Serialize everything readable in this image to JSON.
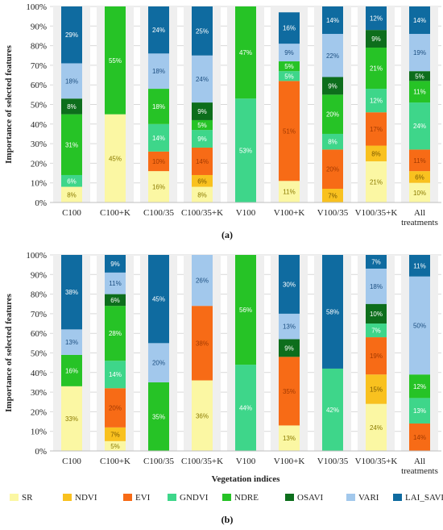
{
  "colors": {
    "SR": "#fbf7a3",
    "NDVI": "#f9c11f",
    "EVI": "#f76b16",
    "GNDVI": "#3ed68a",
    "NDRE": "#26c326",
    "OSAVI": "#0d6e1c",
    "VARI": "#a2c8ec",
    "LAI_SAVI": "#0f6ba0"
  },
  "legend": {
    "items": [
      "SR",
      "NDVI",
      "EVI",
      "GNDVI",
      "NDRE",
      "OSAVI",
      "VARI",
      "LAI_SAVI"
    ]
  },
  "chart_data": [
    {
      "type": "bar",
      "stacked": true,
      "panel_label": "(a)",
      "ylabel": "Importance of selected features",
      "xlabel": "",
      "ylim": [
        0,
        100
      ],
      "yticks": [
        "0%",
        "10%",
        "20%",
        "30%",
        "40%",
        "50%",
        "60%",
        "70%",
        "80%",
        "90%",
        "100%"
      ],
      "categories": [
        "C100",
        "C100+K",
        "C100/35",
        "C100/35+K",
        "V100",
        "V100+K",
        "V100/35",
        "V100/35+K",
        "All treatments"
      ],
      "series": [
        {
          "name": "SR",
          "values": [
            8,
            45,
            16,
            8,
            0,
            11,
            0,
            21,
            10
          ],
          "labels": [
            "8%",
            "45%",
            "16%",
            "8%",
            "",
            "11%",
            "",
            "21%",
            "10%"
          ]
        },
        {
          "name": "NDVI",
          "values": [
            0,
            0,
            0,
            6,
            0,
            0,
            7,
            8,
            6
          ],
          "labels": [
            "",
            "",
            "",
            "6%",
            "",
            "",
            "7%",
            "8%",
            "6%"
          ]
        },
        {
          "name": "EVI",
          "values": [
            0,
            0,
            10,
            14,
            0,
            51,
            20,
            17,
            11
          ],
          "labels": [
            "",
            "",
            "10%",
            "14%",
            "",
            "51%",
            "20%",
            "17%",
            "11%"
          ]
        },
        {
          "name": "GNDVI",
          "values": [
            6,
            0,
            14,
            9,
            53,
            5,
            8,
            12,
            24
          ],
          "labels": [
            "6%",
            "",
            "14%",
            "9%",
            "53%",
            "5%",
            "8%",
            "12%",
            "24%"
          ]
        },
        {
          "name": "NDRE",
          "values": [
            31,
            55,
            18,
            5,
            47,
            5,
            20,
            21,
            11
          ],
          "labels": [
            "31%",
            "55%",
            "18%",
            "5%",
            "47%",
            "5%",
            "20%",
            "21%",
            "11%"
          ]
        },
        {
          "name": "OSAVI",
          "values": [
            8,
            0,
            0,
            9,
            0,
            0,
            9,
            9,
            5
          ],
          "labels": [
            "8%",
            "",
            "",
            "9%",
            "",
            "",
            "9%",
            "9%",
            "5%"
          ]
        },
        {
          "name": "VARI",
          "values": [
            18,
            0,
            18,
            24,
            0,
            9,
            22,
            0,
            19
          ],
          "labels": [
            "18%",
            "",
            "18%",
            "24%",
            "",
            "9%",
            "22%",
            "",
            "19%"
          ]
        },
        {
          "name": "LAI_SAVI",
          "values": [
            29,
            0,
            24,
            25,
            0,
            16,
            14,
            12,
            14
          ],
          "labels": [
            "29%",
            "",
            "24%",
            "25%",
            "",
            "16%",
            "14%",
            "12%",
            "14%"
          ]
        }
      ]
    },
    {
      "type": "bar",
      "stacked": true,
      "panel_label": "(b)",
      "ylabel": "Importance of selected features",
      "xlabel": "Vegetation indices",
      "ylim": [
        0,
        100
      ],
      "yticks": [
        "0%",
        "10%",
        "20%",
        "30%",
        "40%",
        "50%",
        "60%",
        "70%",
        "80%",
        "90%",
        "100%"
      ],
      "categories": [
        "C100",
        "C100+K",
        "C100/35",
        "C100/35+K",
        "V100",
        "V100+K",
        "V100/35",
        "V100/35+K",
        "All treatments"
      ],
      "series": [
        {
          "name": "SR",
          "values": [
            33,
            5,
            0,
            36,
            0,
            13,
            0,
            24,
            0
          ],
          "labels": [
            "33%",
            "5%",
            "",
            "36%",
            "",
            "13%",
            "",
            "24%",
            ""
          ]
        },
        {
          "name": "NDVI",
          "values": [
            0,
            7,
            0,
            0,
            0,
            0,
            0,
            15,
            0
          ],
          "labels": [
            "",
            "7%",
            "",
            "",
            "",
            "",
            "",
            "15%",
            ""
          ]
        },
        {
          "name": "EVI",
          "values": [
            0,
            20,
            0,
            38,
            0,
            35,
            0,
            19,
            14
          ],
          "labels": [
            "",
            "20%",
            "",
            "38%",
            "",
            "35%",
            "",
            "19%",
            "14%"
          ]
        },
        {
          "name": "GNDVI",
          "values": [
            0,
            14,
            0,
            0,
            44,
            0,
            42,
            7,
            13
          ],
          "labels": [
            "",
            "14%",
            "",
            "",
            "44%",
            "",
            "42%",
            "7%",
            "13%"
          ]
        },
        {
          "name": "NDRE",
          "values": [
            16,
            28,
            35,
            0,
            56,
            0,
            0,
            0,
            12
          ],
          "labels": [
            "16%",
            "28%",
            "35%",
            "",
            "56%",
            "",
            "",
            "",
            "12%"
          ]
        },
        {
          "name": "OSAVI",
          "values": [
            0,
            6,
            0,
            0,
            0,
            9,
            0,
            10,
            0
          ],
          "labels": [
            "",
            "6%",
            "",
            "",
            "",
            "9%",
            "",
            "10%",
            ""
          ]
        },
        {
          "name": "VARI",
          "values": [
            13,
            11,
            20,
            26,
            0,
            13,
            0,
            18,
            50
          ],
          "labels": [
            "13%",
            "11%",
            "20%",
            "26%",
            "",
            "13%",
            "",
            "18%",
            "50%"
          ]
        },
        {
          "name": "LAI_SAVI",
          "values": [
            38,
            9,
            45,
            0,
            0,
            30,
            58,
            7,
            11
          ],
          "labels": [
            "38%",
            "9%",
            "45%",
            "",
            "",
            "30%",
            "58%",
            "7%",
            "11%"
          ]
        }
      ]
    }
  ]
}
